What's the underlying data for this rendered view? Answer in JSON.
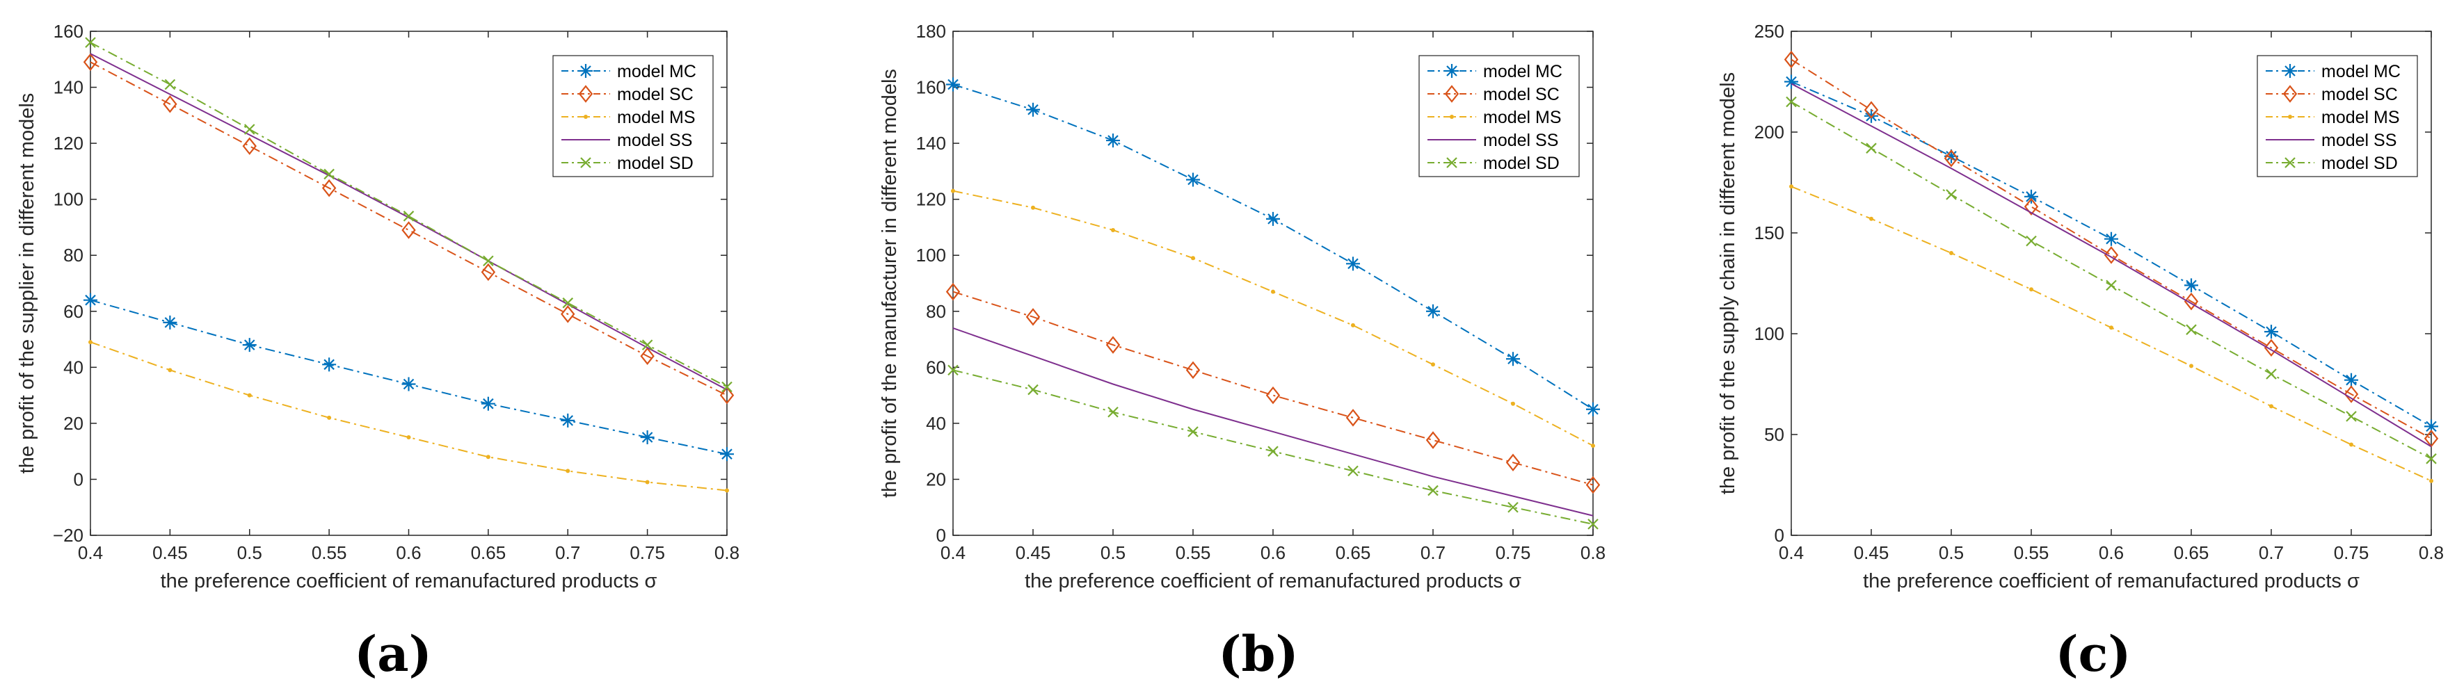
{
  "figure_captions": [
    "(a)",
    "(b)",
    "(c)"
  ],
  "series_colors": {
    "model MC": "#0072BD",
    "model SC": "#D95319",
    "model MS": "#EDB120",
    "model SS": "#7E2F8E",
    "model SD": "#77AC30"
  },
  "chart_data": [
    {
      "type": "line",
      "caption": "(a)",
      "xlabel": "the preference coefficient of remanufactured products σ",
      "ylabel": "the profit of the supplier in different models",
      "xlim": [
        0.4,
        0.8
      ],
      "ylim": [
        -20,
        160
      ],
      "xticks": [
        "0.4",
        "0.45",
        "0.5",
        "0.55",
        "0.6",
        "0.65",
        "0.7",
        "0.75",
        "0.8"
      ],
      "yticks": [
        "−20",
        "0",
        "20",
        "40",
        "60",
        "80",
        "100",
        "120",
        "140",
        "160"
      ],
      "legend_position": "top-right",
      "x": [
        0.4,
        0.45,
        0.5,
        0.55,
        0.6,
        0.65,
        0.7,
        0.75,
        0.8
      ],
      "series": [
        {
          "name": "model MC",
          "values": [
            64,
            56,
            48,
            41,
            34,
            27,
            21,
            15,
            9
          ]
        },
        {
          "name": "model SC",
          "values": [
            149,
            134,
            119,
            104,
            89,
            74,
            59,
            44,
            30
          ]
        },
        {
          "name": "model MS",
          "values": [
            49,
            39,
            30,
            22,
            15,
            8,
            3,
            -1,
            -4
          ]
        },
        {
          "name": "model SS",
          "values": [
            152,
            137.5,
            123,
            108.5,
            93.5,
            78,
            62.5,
            47,
            32
          ]
        },
        {
          "name": "model SD",
          "values": [
            156,
            141,
            125,
            109,
            94,
            78,
            63,
            48,
            33
          ]
        }
      ]
    },
    {
      "type": "line",
      "caption": "(b)",
      "xlabel": "the preference coefficient of remanufactured products σ",
      "ylabel": "the profit of the manufacturer in different models",
      "xlim": [
        0.4,
        0.8
      ],
      "ylim": [
        0,
        180
      ],
      "xticks": [
        "0.4",
        "0.45",
        "0.5",
        "0.55",
        "0.6",
        "0.65",
        "0.7",
        "0.75",
        "0.8"
      ],
      "yticks": [
        "0",
        "20",
        "40",
        "60",
        "80",
        "100",
        "120",
        "140",
        "160",
        "180"
      ],
      "legend_position": "top-right",
      "x": [
        0.4,
        0.45,
        0.5,
        0.55,
        0.6,
        0.65,
        0.7,
        0.75,
        0.8
      ],
      "series": [
        {
          "name": "model MC",
          "values": [
            161,
            152,
            141,
            127,
            113,
            97,
            80,
            63,
            45
          ]
        },
        {
          "name": "model SC",
          "values": [
            87,
            78,
            68,
            59,
            50,
            42,
            34,
            26,
            18
          ]
        },
        {
          "name": "model MS",
          "values": [
            123,
            117,
            109,
            99,
            87,
            75,
            61,
            47,
            32
          ]
        },
        {
          "name": "model SS",
          "values": [
            74,
            64,
            54,
            45,
            37,
            29,
            21,
            14,
            7
          ]
        },
        {
          "name": "model SD",
          "values": [
            59,
            52,
            44,
            37,
            30,
            23,
            16,
            10,
            4
          ]
        }
      ]
    },
    {
      "type": "line",
      "caption": "(c)",
      "xlabel": "the preference coefficient of remanufactured products σ",
      "ylabel": "the profit of the supply chain in different models",
      "xlim": [
        0.4,
        0.8
      ],
      "ylim": [
        0,
        250
      ],
      "xticks": [
        "0.4",
        "0.45",
        "0.5",
        "0.55",
        "0.6",
        "0.65",
        "0.7",
        "0.75",
        "0.8"
      ],
      "yticks": [
        "0",
        "50",
        "100",
        "150",
        "200",
        "250"
      ],
      "legend_position": "top-right",
      "x": [
        0.4,
        0.45,
        0.5,
        0.55,
        0.6,
        0.65,
        0.7,
        0.75,
        0.8
      ],
      "series": [
        {
          "name": "model MC",
          "values": [
            225,
            208,
            188,
            168,
            147,
            124,
            101,
            77,
            54
          ]
        },
        {
          "name": "model SC",
          "values": [
            236,
            211,
            187,
            163,
            139,
            116,
            93,
            70,
            48
          ]
        },
        {
          "name": "model MS",
          "values": [
            173,
            157,
            140,
            122,
            103,
            84,
            64,
            45,
            27
          ]
        },
        {
          "name": "model SS",
          "values": [
            224,
            203,
            182,
            160,
            138,
            115,
            92,
            68,
            44
          ]
        },
        {
          "name": "model SD",
          "values": [
            215,
            192,
            169,
            146,
            124,
            102,
            80,
            59,
            38
          ]
        }
      ]
    }
  ]
}
